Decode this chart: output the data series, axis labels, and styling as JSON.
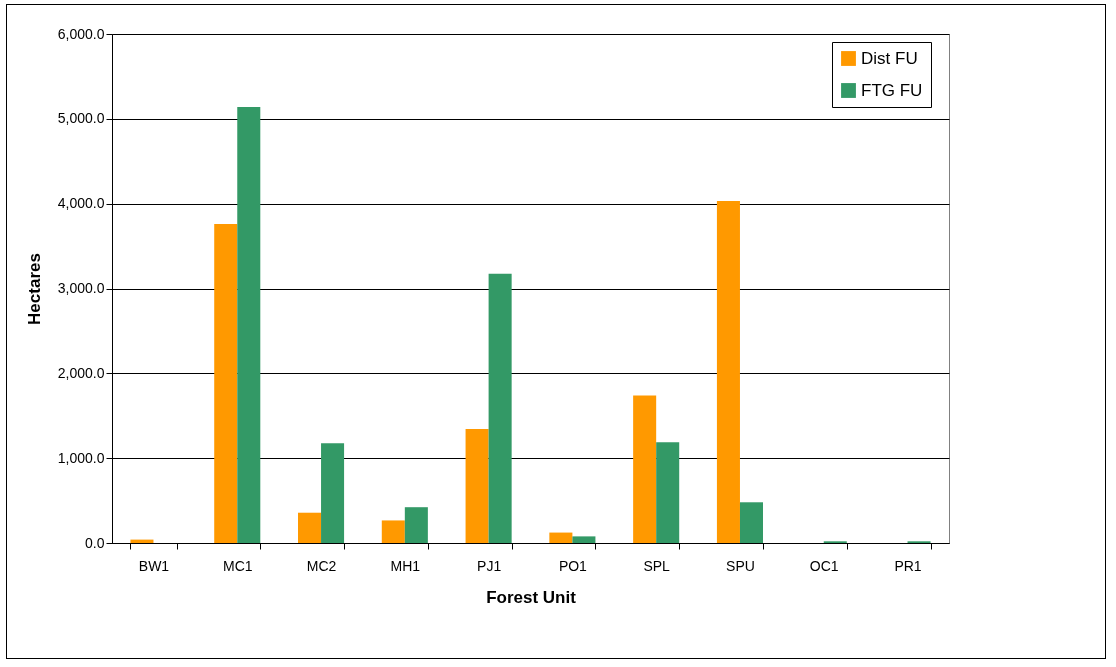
{
  "chart_data": {
    "type": "bar",
    "xlabel": "Forest Unit",
    "ylabel": "Hectares",
    "categories": [
      "BW1",
      "MC1",
      "MC2",
      "MH1",
      "PJ1",
      "PO1",
      "SPL",
      "SPU",
      "OC1",
      "PR1"
    ],
    "series": [
      {
        "name": "Dist FU",
        "color": "#ff9900",
        "values": [
          40,
          3760,
          357,
          266,
          1344,
          123,
          1740,
          4030,
          0,
          0
        ]
      },
      {
        "name": "FTG FU",
        "color": "#339966",
        "values": [
          0,
          5140,
          1175,
          422,
          3175,
          78,
          1188,
          480,
          20,
          20
        ]
      }
    ],
    "ylim": [
      0,
      6000
    ],
    "yticks": [
      {
        "value": 0,
        "label": "0.0"
      },
      {
        "value": 1000,
        "label": "1,000.0"
      },
      {
        "value": 2000,
        "label": "2,000.0"
      },
      {
        "value": 3000,
        "label": "3,000.0"
      },
      {
        "value": 4000,
        "label": "4,000.0"
      },
      {
        "value": 5000,
        "label": "5,000.0"
      },
      {
        "value": 6000,
        "label": "6,000.0"
      }
    ],
    "grid": "y",
    "legend": "top right"
  }
}
